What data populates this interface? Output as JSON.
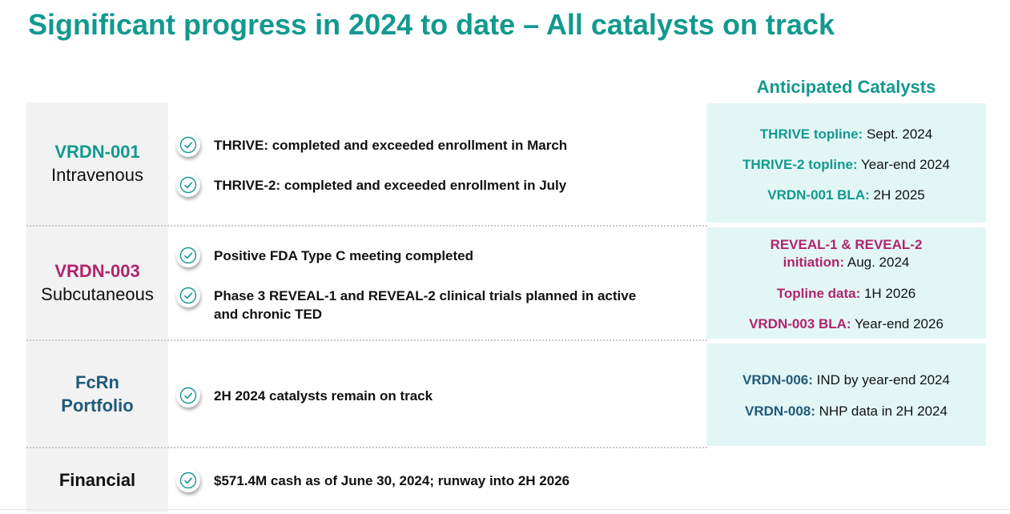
{
  "title": "Significant progress in 2024 to date – All catalysts on track",
  "catalysts_header": "Anticipated Catalysts",
  "rows": [
    {
      "name": "VRDN-001",
      "sub": "Intravenous",
      "items": [
        "THRIVE: completed and exceeded enrollment in March",
        "THRIVE-2: completed and exceeded enrollment in July"
      ],
      "catalysts": [
        {
          "key": "THRIVE topline:",
          "value": " Sept. 2024"
        },
        {
          "key": "THRIVE-2 topline:",
          "value": " Year-end 2024"
        },
        {
          "key": "VRDN-001 BLA:",
          "value": " 2H 2025"
        }
      ]
    },
    {
      "name": "VRDN-003",
      "sub": "Subcutaneous",
      "items": [
        "Positive FDA Type C meeting completed",
        "Phase 3 REVEAL-1 and REVEAL-2 clinical trials planned in active and chronic TED"
      ],
      "catalysts": [
        {
          "key": "REVEAL-1 & REVEAL-2",
          "value": ""
        },
        {
          "key": "initiation:",
          "value": " Aug. 2024"
        },
        {
          "key": "Topline data:",
          "value": " 1H 2026"
        },
        {
          "key": "VRDN-003 BLA:",
          "value": " Year-end 2026"
        }
      ]
    },
    {
      "name": "FcRn",
      "sub": "Portfolio",
      "items": [
        "2H 2024 catalysts remain on track"
      ],
      "catalysts": [
        {
          "key": "VRDN-006:",
          "value": " IND by year-end 2024"
        },
        {
          "key": "VRDN-008:",
          "value": " NHP data in 2H 2024"
        }
      ]
    },
    {
      "name": "Financial",
      "sub": "",
      "items": [
        "$571.4M cash as of June 30, 2024; runway into 2H 2026"
      ],
      "catalysts": []
    }
  ],
  "colors": {
    "teal": "#12998f",
    "magenta": "#b0246e",
    "navy": "#1f5a7a",
    "catalyst_bg": "#e3f6f6",
    "label_bg": "#f2f2f2"
  },
  "icons": {
    "check": "check-circle-icon"
  }
}
